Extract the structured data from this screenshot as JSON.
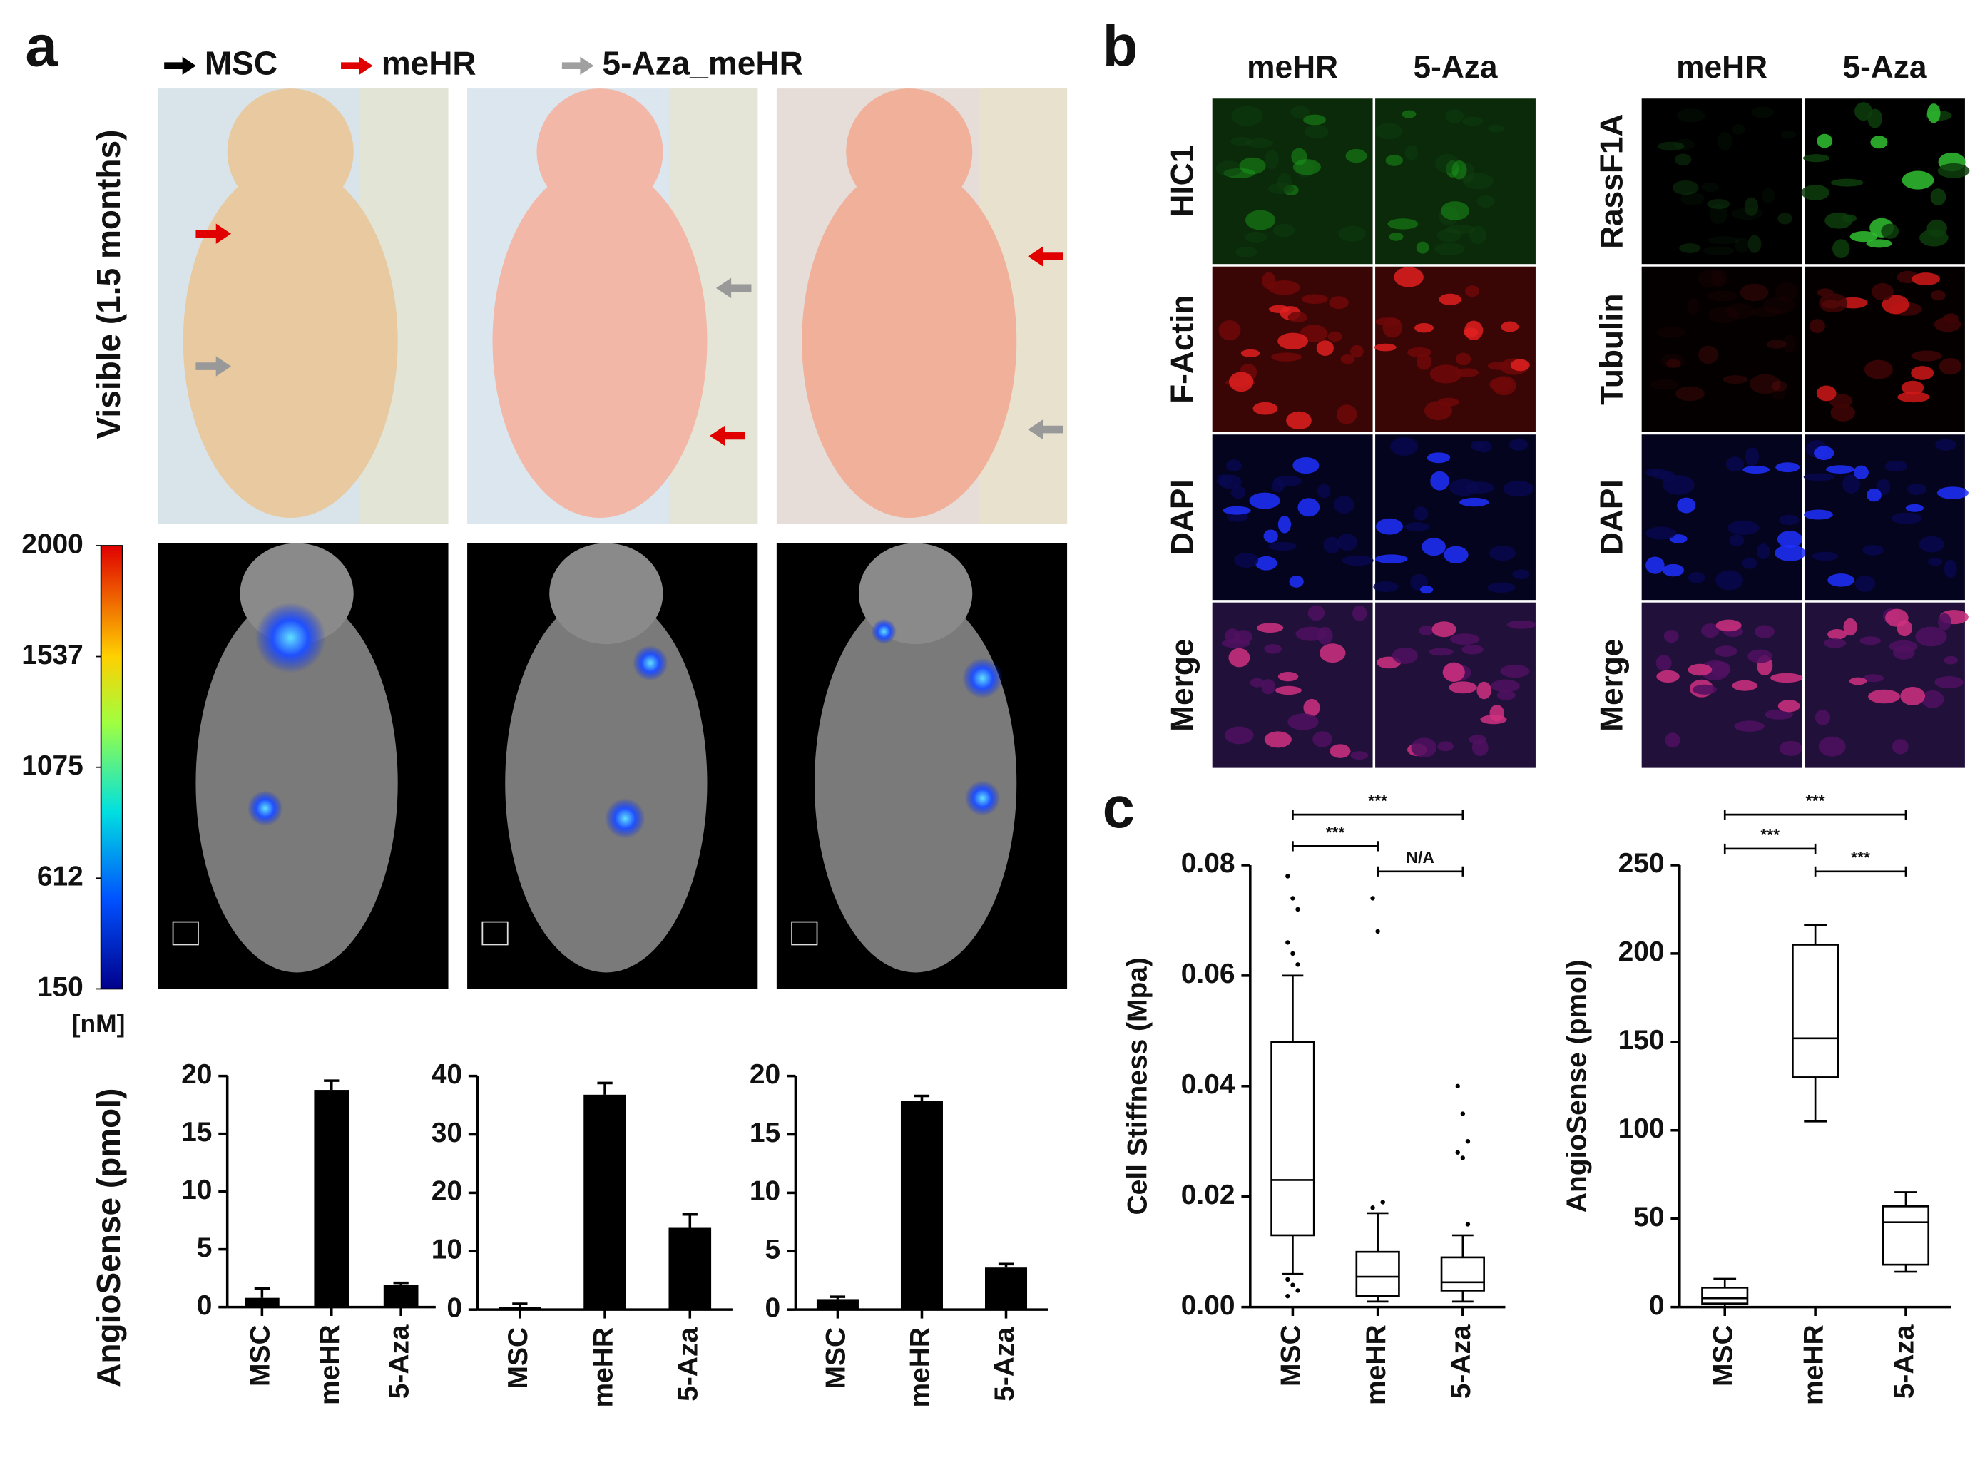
{
  "panel_labels": [
    "a",
    "b",
    "c"
  ],
  "panel_a": {
    "legend": [
      "MSC",
      "meHR",
      "5-Aza_meHR"
    ],
    "row_label": "Visible (1.5 months)",
    "colorbar": {
      "lim": [
        150,
        2000
      ],
      "ticks": [
        2000,
        1537,
        1075,
        612,
        150
      ],
      "unit": "[nM]"
    }
  },
  "panel_b": {
    "left": {
      "columns": [
        "meHR",
        "5-Aza"
      ],
      "rows": [
        "HIC1",
        "F-Actin",
        "DAPI",
        "Merge"
      ]
    },
    "right": {
      "columns": [
        "meHR",
        "5-Aza"
      ],
      "rows": [
        "RassF1A",
        "Tubulin",
        "DAPI",
        "Merge"
      ]
    }
  },
  "chart_data": [
    {
      "type": "bar",
      "ylabel": "AngioSense (pmol)",
      "categories": [
        "MSC",
        "meHR",
        "5-Aza"
      ],
      "values": [
        0.8,
        18.8,
        1.9
      ],
      "errors": [
        0.8,
        0.8,
        0.2
      ],
      "color": "#000000",
      "ylim": [
        0,
        20
      ],
      "yticks": [
        0,
        5,
        10,
        15,
        20
      ]
    },
    {
      "type": "bar",
      "categories": [
        "MSC",
        "meHR",
        "5-Aza"
      ],
      "values": [
        0.5,
        36.8,
        14
      ],
      "errors": [
        0.5,
        2,
        2.3
      ],
      "color": "#000000",
      "ylim": [
        0,
        40
      ],
      "yticks": [
        0,
        10,
        20,
        30,
        40
      ]
    },
    {
      "type": "bar",
      "categories": [
        "MSC",
        "meHR",
        "5-Aza"
      ],
      "values": [
        0.9,
        17.9,
        3.6
      ],
      "errors": [
        0.2,
        0.4,
        0.3
      ],
      "color": "#000000",
      "ylim": [
        0,
        20
      ],
      "yticks": [
        0,
        5,
        10,
        15,
        20
      ]
    },
    {
      "type": "box",
      "ylabel": "Cell Stiffness (Mpa)",
      "categories": [
        "MSC",
        "meHR",
        "5-Aza"
      ],
      "whisker_low": [
        0.006,
        0.001,
        0.001
      ],
      "q1": [
        0.013,
        0.002,
        0.003
      ],
      "median": [
        0.023,
        0.0055,
        0.0045
      ],
      "q3": [
        0.048,
        0.01,
        0.009
      ],
      "whisker_high": [
        0.06,
        0.017,
        0.013
      ],
      "outliers": [
        [
          0.078,
          0.074,
          0.072,
          0.066,
          0.064,
          0.062,
          0.005,
          0.004,
          0.003,
          0.002
        ],
        [
          0.074,
          0.068,
          0.019,
          0.018
        ],
        [
          0.04,
          0.035,
          0.03,
          0.028,
          0.027,
          0.015
        ]
      ],
      "annotations": [
        "***",
        "***",
        "N/A"
      ],
      "ylim": [
        0,
        0.08
      ],
      "yticks": [
        {
          "value": 0,
          "label": "0.00"
        },
        0.02,
        0.04,
        0.06,
        0.08
      ]
    },
    {
      "type": "box",
      "ylabel": "AngioSense (pmol)",
      "categories": [
        "MSC",
        "meHR",
        "5-Aza"
      ],
      "whisker_low": [
        0,
        105,
        20
      ],
      "q1": [
        2,
        130,
        24
      ],
      "median": [
        5,
        152,
        48
      ],
      "q3": [
        11,
        205,
        57
      ],
      "whisker_high": [
        16,
        216,
        65
      ],
      "annotations": [
        "***",
        "***",
        "***"
      ],
      "ylim": [
        0,
        250
      ],
      "yticks": [
        0,
        50,
        100,
        150,
        200,
        250
      ]
    }
  ]
}
